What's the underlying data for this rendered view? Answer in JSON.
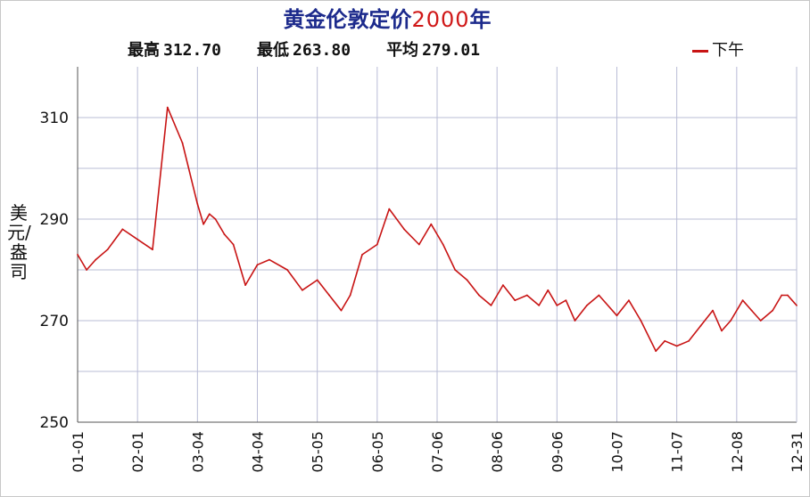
{
  "chart_data": {
    "type": "line",
    "title": {
      "part1": "黄金伦敦定价",
      "part2": "2000",
      "part3": "年"
    },
    "stats": {
      "high_label": "最高",
      "high_value": "312.70",
      "low_label": "最低",
      "low_value": "263.80",
      "avg_label": "平均",
      "avg_value": "279.01"
    },
    "legend": [
      {
        "name": "下午",
        "color": "#c81414"
      }
    ],
    "ylabel": "美元/盎司",
    "ylim": [
      250,
      320
    ],
    "yticks": [
      250,
      270,
      290,
      310
    ],
    "xticks": [
      "01-01",
      "02-01",
      "03-04",
      "04-04",
      "05-05",
      "06-05",
      "07-06",
      "08-06",
      "09-06",
      "10-07",
      "11-07",
      "12-08",
      "12-31"
    ],
    "grid": true,
    "series": [
      {
        "name": "下午",
        "color": "#c81414",
        "x": [
          0,
          0.15,
          0.3,
          0.5,
          0.75,
          1.0,
          1.25,
          1.5,
          1.75,
          2.0,
          2.1,
          2.2,
          2.3,
          2.45,
          2.6,
          2.8,
          3.0,
          3.2,
          3.5,
          3.75,
          4.0,
          4.2,
          4.4,
          4.55,
          4.75,
          5.0,
          5.2,
          5.45,
          5.7,
          5.9,
          6.1,
          6.3,
          6.5,
          6.7,
          6.9,
          7.1,
          7.3,
          7.5,
          7.7,
          7.85,
          8.0,
          8.15,
          8.3,
          8.5,
          8.7,
          9.0,
          9.2,
          9.4,
          9.65,
          9.8,
          10.0,
          10.2,
          10.4,
          10.6,
          10.75,
          10.9,
          11.1,
          11.25,
          11.4,
          11.6,
          11.75,
          11.85,
          12.0
        ],
        "y": [
          283,
          280,
          282,
          284,
          288,
          286,
          284,
          312,
          305,
          293,
          289,
          291,
          290,
          287,
          285,
          277,
          281,
          282,
          280,
          276,
          278,
          275,
          272,
          275,
          283,
          285,
          292,
          288,
          285,
          289,
          285,
          280,
          278,
          275,
          273,
          277,
          274,
          275,
          273,
          276,
          273,
          274,
          270,
          273,
          275,
          271,
          274,
          270,
          264,
          266,
          265,
          266,
          269,
          272,
          268,
          270,
          274,
          272,
          270,
          272,
          275,
          275,
          273
        ]
      }
    ]
  }
}
